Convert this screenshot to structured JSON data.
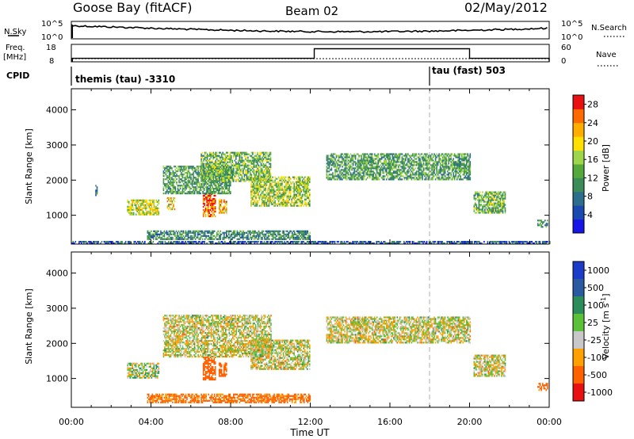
{
  "header": {
    "title": "Goose Bay (fitACF)",
    "beam": "Beam 02",
    "date": "02/May/2012"
  },
  "ancillary": {
    "nsky_label": "N.Sky",
    "nsky_ticks": [
      "10^5",
      "10^0"
    ],
    "nsearch_label": "N.Search",
    "nsearch_ticks": [
      "10^5",
      "10^0"
    ],
    "freq_label_1": "Freq.",
    "freq_label_2": "[MHz]",
    "freq_ticks": [
      "18",
      "8"
    ],
    "nave_label": "Nave",
    "nave_ticks": [
      "60",
      "0"
    ],
    "cpid_label": "CPID",
    "cpid_segments": [
      {
        "label": "themis (tau) -3310",
        "start_hour": 0,
        "end_hour": 18
      },
      {
        "label": "tau (fast) 503",
        "start_hour": 18,
        "end_hour": 24
      }
    ],
    "freq_series": [
      {
        "start_hour": 0.05,
        "end_hour": 12.2,
        "value_mhz": 10
      },
      {
        "start_hour": 12.2,
        "end_hour": 20.0,
        "value_mhz": 15.5
      },
      {
        "start_hour": 20.0,
        "end_hour": 24.0,
        "value_mhz": 10
      }
    ]
  },
  "chart_data": [
    {
      "type": "heatmap",
      "title": "",
      "xlabel": "Time UT",
      "ylabel": "Slant Range [km]",
      "xlim": [
        0,
        24
      ],
      "ylim": [
        180,
        4600
      ],
      "x_ticks": [
        "00:00",
        "04:00",
        "08:00",
        "12:00",
        "16:00",
        "20:00",
        "00:00"
      ],
      "y_ticks": [
        1000,
        2000,
        3000,
        4000
      ],
      "colorbar": {
        "label": "Power [dB]",
        "ticks": [
          4,
          8,
          12,
          16,
          20,
          24,
          28
        ],
        "range": [
          0,
          30
        ],
        "colors": [
          "#1515e8",
          "#1a49b0",
          "#2c6e8c",
          "#3c8c5a",
          "#55a83a",
          "#9dd64b",
          "#ffe000",
          "#ffae00",
          "#ff6a00",
          "#e81010"
        ]
      },
      "regions": [
        {
          "t0": 1.2,
          "t1": 1.3,
          "r0": 1550,
          "r1": 1850,
          "power": 8
        },
        {
          "t0": 2.8,
          "t1": 4.4,
          "r0": 1000,
          "r1": 1450,
          "power": 18
        },
        {
          "t0": 4.8,
          "t1": 5.2,
          "r0": 1150,
          "r1": 1500,
          "power": 20
        },
        {
          "t0": 6.6,
          "t1": 7.2,
          "r0": 950,
          "r1": 1600,
          "power": 26
        },
        {
          "t0": 7.4,
          "t1": 7.8,
          "r0": 1050,
          "r1": 1450,
          "power": 22
        },
        {
          "t0": 4.6,
          "t1": 8.0,
          "r0": 1600,
          "r1": 2400,
          "power": 12
        },
        {
          "t0": 6.5,
          "t1": 10.0,
          "r0": 1950,
          "r1": 2800,
          "power": 14
        },
        {
          "t0": 9.0,
          "t1": 12.0,
          "r0": 1250,
          "r1": 2100,
          "power": 16
        },
        {
          "t0": 12.8,
          "t1": 20.0,
          "r0": 2000,
          "r1": 2750,
          "power": 12
        },
        {
          "t0": 20.2,
          "t1": 21.8,
          "r0": 1050,
          "r1": 1650,
          "power": 14
        },
        {
          "t0": 23.4,
          "t1": 23.9,
          "r0": 650,
          "r1": 850,
          "power": 12
        },
        {
          "t0": 3.8,
          "t1": 12.0,
          "r0": 300,
          "r1": 550,
          "power": 10
        },
        {
          "t0": 0.0,
          "t1": 24.0,
          "r0": 180,
          "r1": 260,
          "power": 6
        }
      ]
    },
    {
      "type": "heatmap",
      "title": "",
      "xlabel": "Time UT",
      "ylabel": "Slant Range [km]",
      "xlim": [
        0,
        24
      ],
      "ylim": [
        180,
        4600
      ],
      "x_ticks": [
        "00:00",
        "04:00",
        "08:00",
        "12:00",
        "16:00",
        "20:00",
        "00:00"
      ],
      "y_ticks": [
        1000,
        2000,
        3000,
        4000
      ],
      "colorbar": {
        "label": "Velocity [m s^-1]",
        "tick_labels": [
          "1000",
          "500",
          "100",
          "25",
          "-25",
          "-100",
          "-500",
          "-1000"
        ],
        "colors": [
          "#1a3cc8",
          "#2a5aa0",
          "#2c8c5a",
          "#5cc038",
          "#c8c8c8",
          "#ffa000",
          "#ff6000",
          "#e81010"
        ]
      },
      "regions": [
        {
          "t0": 2.8,
          "t1": 4.4,
          "r0": 1000,
          "r1": 1450,
          "velocity": 40
        },
        {
          "t0": 6.6,
          "t1": 7.2,
          "r0": 950,
          "r1": 1600,
          "velocity": -300
        },
        {
          "t0": 7.4,
          "t1": 7.8,
          "r0": 1050,
          "r1": 1450,
          "velocity": -200
        },
        {
          "t0": 4.6,
          "t1": 10.0,
          "r0": 1600,
          "r1": 2800,
          "velocity": 0
        },
        {
          "t0": 9.0,
          "t1": 12.0,
          "r0": 1250,
          "r1": 2100,
          "velocity": 0
        },
        {
          "t0": 12.8,
          "t1": 20.0,
          "r0": 2000,
          "r1": 2750,
          "velocity": 0
        },
        {
          "t0": 20.2,
          "t1": 21.8,
          "r0": 1050,
          "r1": 1650,
          "velocity": 0
        },
        {
          "t0": 23.4,
          "t1": 23.9,
          "r0": 650,
          "r1": 850,
          "velocity": -200
        },
        {
          "t0": 3.8,
          "t1": 12.0,
          "r0": 300,
          "r1": 550,
          "velocity": -150
        }
      ]
    }
  ]
}
